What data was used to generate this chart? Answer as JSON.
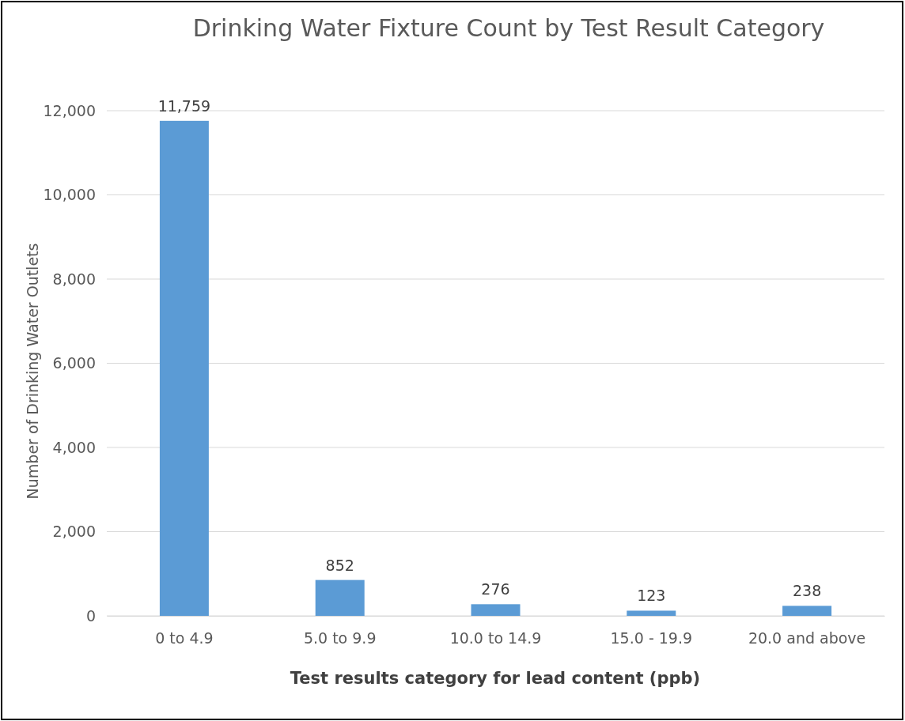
{
  "chart_data": {
    "type": "bar",
    "title": "Drinking Water Fixture Count by Test Result Category",
    "xlabel": "Test results category for lead content (ppb)",
    "ylabel": "Number of Drinking Water Outlets",
    "categories": [
      "0 to 4.9",
      "5.0 to 9.9",
      "10.0 to 14.9",
      "15.0 - 19.9",
      "20.0 and above"
    ],
    "values": [
      11759,
      852,
      276,
      123,
      238
    ],
    "color": "#5b9bd5",
    "ylim": [
      0,
      12000
    ],
    "yticks": [
      {
        "value": 0,
        "label": "0"
      },
      {
        "value": 2000,
        "label": "2,000"
      },
      {
        "value": 4000,
        "label": "4,000"
      },
      {
        "value": 6000,
        "label": "6,000"
      },
      {
        "value": 8000,
        "label": "8,000"
      },
      {
        "value": 10000,
        "label": "10,000"
      },
      {
        "value": 12000,
        "label": "12,000"
      }
    ],
    "value_labels": [
      "11,759",
      "852",
      "276",
      "123",
      "238"
    ],
    "grid": "y"
  }
}
